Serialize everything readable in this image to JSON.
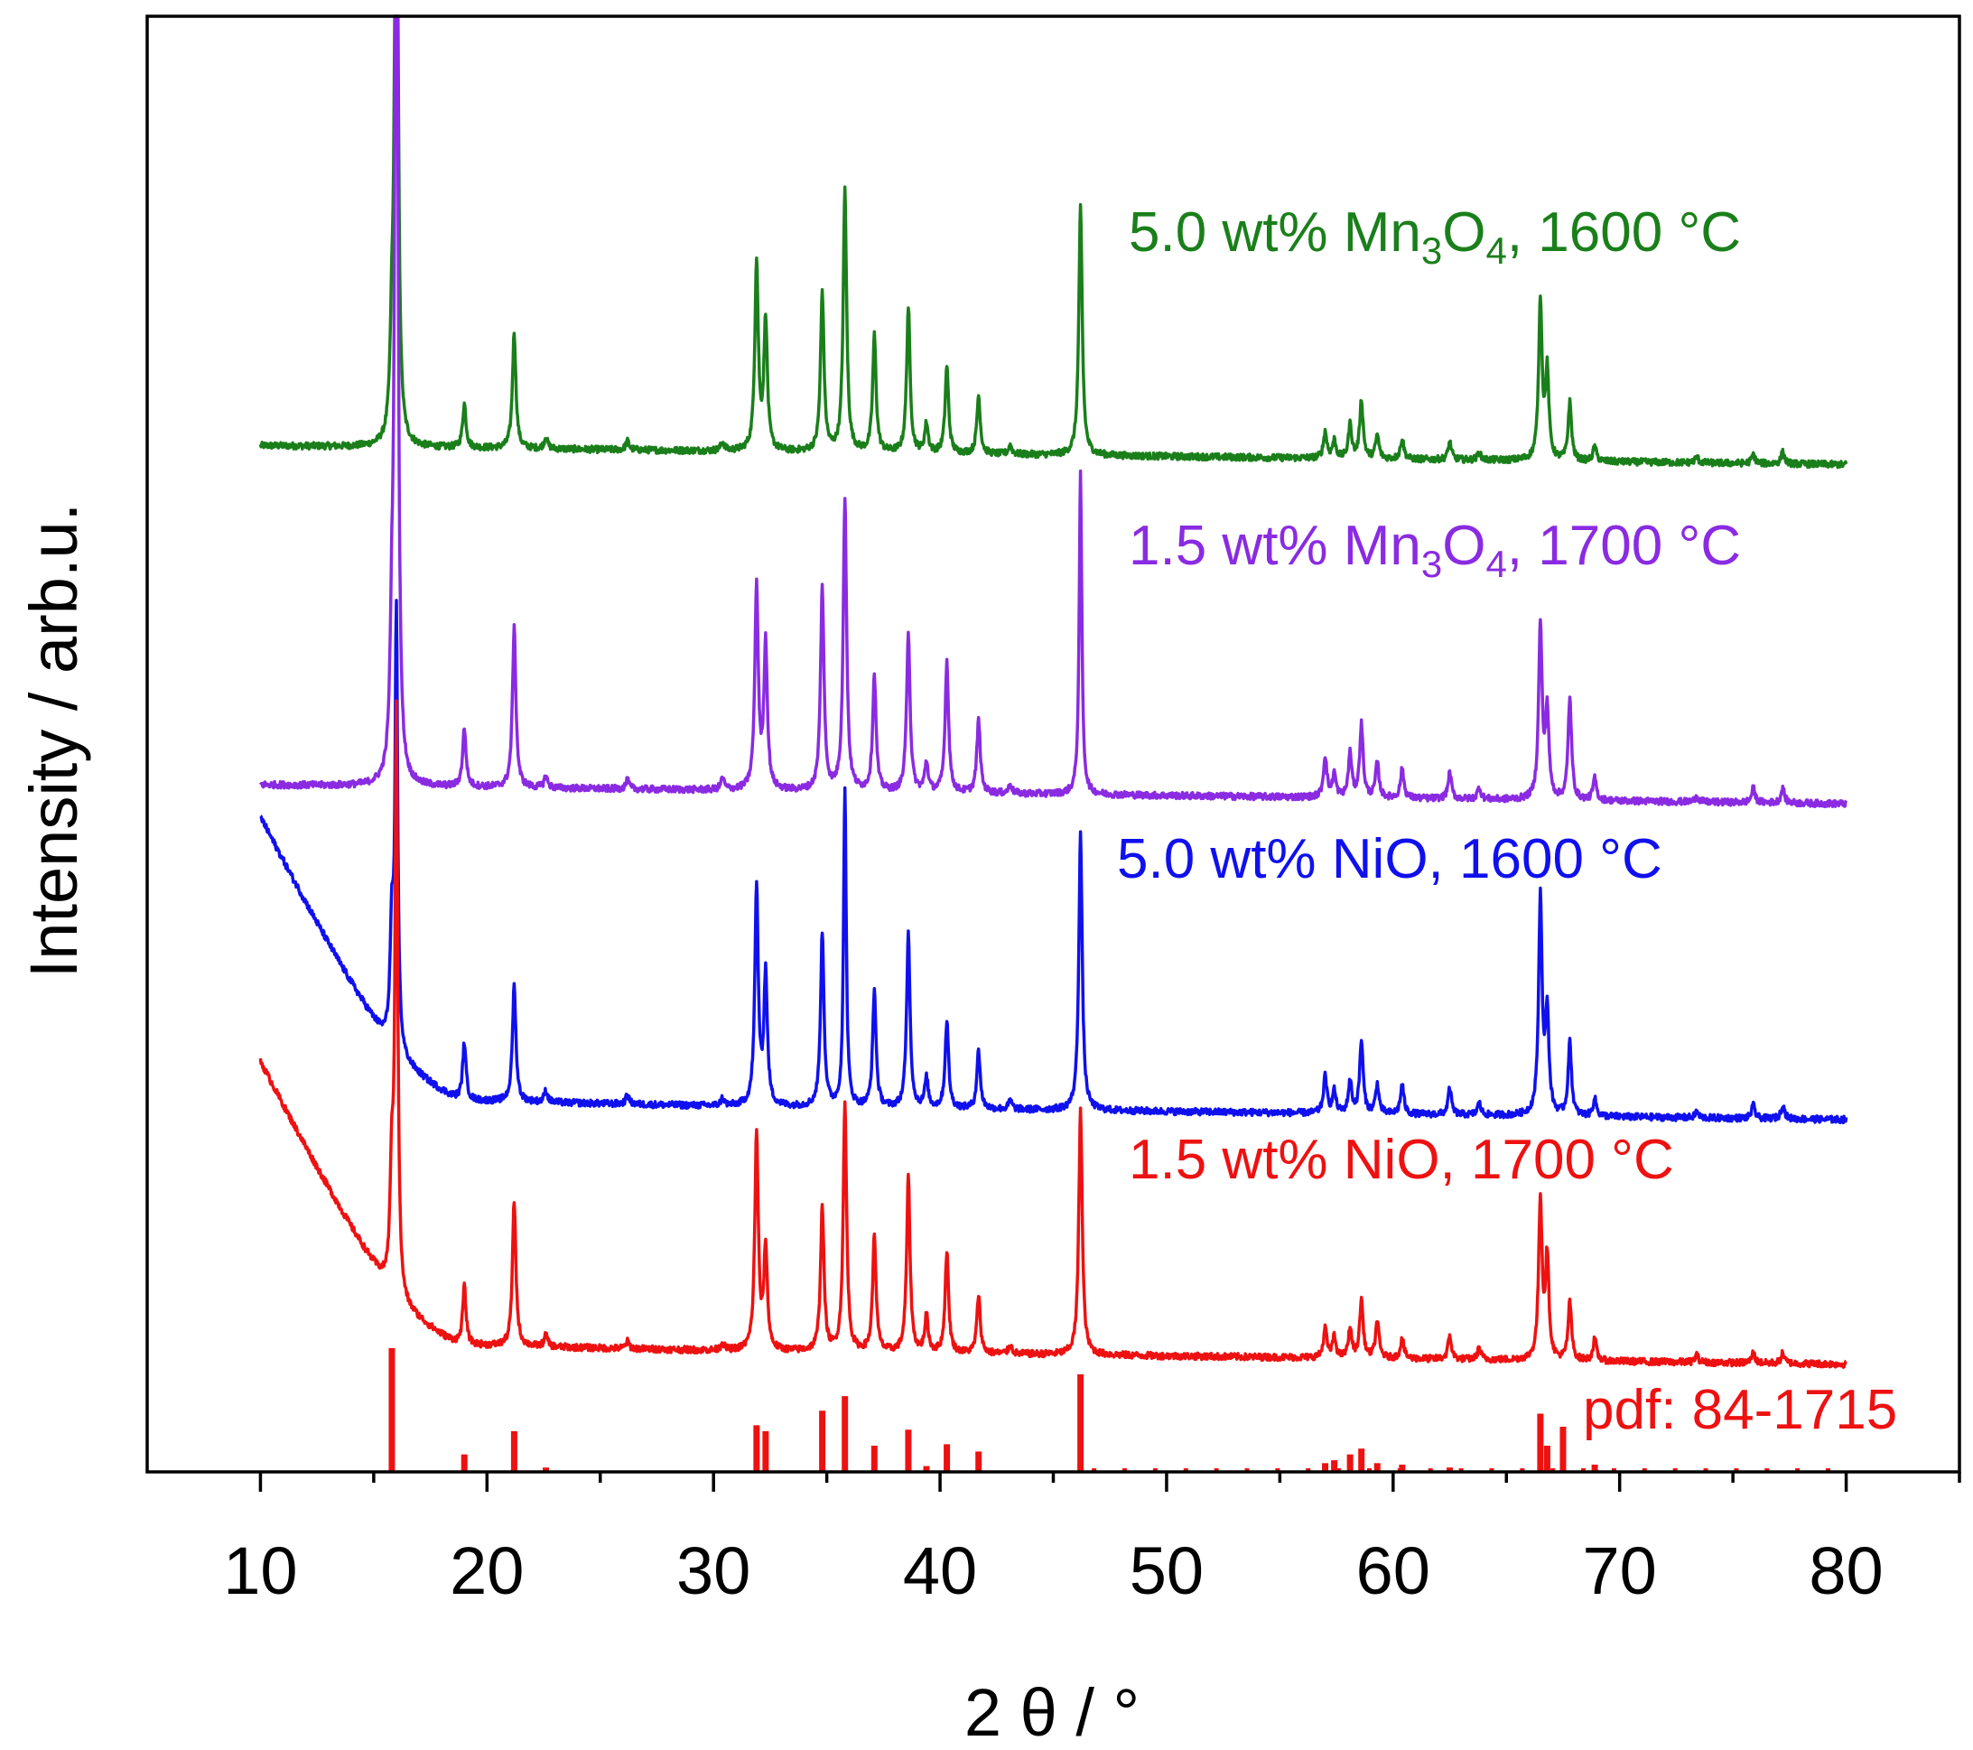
{
  "chart_data": {
    "type": "line",
    "title": "",
    "xlabel": "2 θ / °",
    "ylabel": "Intensity / arb.u.",
    "xlim": [
      5,
      85
    ],
    "ylim": [
      0,
      100
    ],
    "xticks": [
      "10",
      "20",
      "30",
      "40",
      "50",
      "60",
      "70",
      "80"
    ],
    "grid": false,
    "legend": "inline labels right of traces",
    "series": [
      {
        "name": "5.0 wt% Mn3O4, 1600 °C",
        "label_parts": [
          "5.0 wt% Mn",
          "3",
          "O",
          "4",
          ", 1600 °C"
        ],
        "color": "#1a7f1a",
        "baseline": 70.5,
        "tilt": -1.3,
        "background": "flat",
        "points": [
          [
            15.8,
            6
          ],
          [
            16.0,
            66
          ],
          [
            19.0,
            3
          ],
          [
            21.2,
            8
          ],
          [
            22.6,
            0.8
          ],
          [
            26.2,
            0.6
          ],
          [
            30.4,
            0.6
          ],
          [
            31.9,
            13
          ],
          [
            32.3,
            9
          ],
          [
            34.8,
            11
          ],
          [
            35.8,
            18
          ],
          [
            37.1,
            8
          ],
          [
            38.6,
            10
          ],
          [
            39.4,
            2
          ],
          [
            40.3,
            6
          ],
          [
            41.7,
            4
          ],
          [
            43.1,
            0.6
          ],
          [
            46.2,
            17
          ],
          [
            57.0,
            1.8
          ],
          [
            57.4,
            1.2
          ],
          [
            58.1,
            2.3
          ],
          [
            58.6,
            4
          ],
          [
            59.3,
            1.6
          ],
          [
            60.4,
            1.4
          ],
          [
            62.5,
            1.2
          ],
          [
            63.8,
            0.5
          ],
          [
            66.5,
            11
          ],
          [
            66.8,
            6
          ],
          [
            67.8,
            4
          ],
          [
            68.9,
            1
          ],
          [
            73.4,
            0.4
          ],
          [
            75.9,
            0.6
          ],
          [
            77.2,
            0.8
          ]
        ]
      },
      {
        "name": "1.5 wt% Mn3O4, 1700 °C",
        "label_parts": [
          "1.5 wt% Mn",
          "3",
          "O",
          "4",
          ", 1700 °C"
        ],
        "color": "#8a2be2",
        "baseline": 47.2,
        "tilt": -1.3,
        "background": "flat",
        "points": [
          [
            15.8,
            8
          ],
          [
            16.0,
            88
          ],
          [
            19.0,
            4
          ],
          [
            21.2,
            11
          ],
          [
            22.6,
            0.8
          ],
          [
            26.2,
            0.6
          ],
          [
            30.4,
            0.8
          ],
          [
            31.9,
            14
          ],
          [
            32.3,
            10
          ],
          [
            34.8,
            14
          ],
          [
            35.8,
            20
          ],
          [
            37.1,
            8
          ],
          [
            38.6,
            11
          ],
          [
            39.4,
            2
          ],
          [
            40.3,
            9
          ],
          [
            41.7,
            5
          ],
          [
            43.1,
            0.6
          ],
          [
            46.2,
            22
          ],
          [
            57.0,
            2.8
          ],
          [
            57.4,
            1.6
          ],
          [
            58.1,
            3
          ],
          [
            58.6,
            5
          ],
          [
            59.3,
            2.4
          ],
          [
            60.4,
            2
          ],
          [
            62.5,
            1.8
          ],
          [
            63.8,
            0.8
          ],
          [
            66.5,
            12
          ],
          [
            66.8,
            6
          ],
          [
            67.8,
            7
          ],
          [
            68.9,
            1.5
          ],
          [
            73.4,
            0.4
          ],
          [
            75.9,
            1
          ],
          [
            77.2,
            1
          ]
        ]
      },
      {
        "name": "5.0 wt% NiO, 1600 °C",
        "label_parts": [
          "5.0 wt% NiO, 1600 °C",
          "",
          "",
          "",
          ""
        ],
        "color": "#1010ee",
        "baseline": 25.5,
        "tilt": -1.3,
        "background": "rising",
        "points": [
          [
            15.8,
            8
          ],
          [
            16.0,
            30
          ],
          [
            19.0,
            4
          ],
          [
            21.2,
            8
          ],
          [
            22.6,
            0.8
          ],
          [
            26.2,
            0.6
          ],
          [
            30.4,
            0.5
          ],
          [
            31.9,
            15
          ],
          [
            32.3,
            9
          ],
          [
            34.8,
            12
          ],
          [
            35.8,
            22
          ],
          [
            37.1,
            8
          ],
          [
            38.6,
            12
          ],
          [
            39.4,
            2
          ],
          [
            40.3,
            6
          ],
          [
            41.7,
            4
          ],
          [
            43.1,
            0.6
          ],
          [
            46.2,
            19
          ],
          [
            57.0,
            2.5
          ],
          [
            57.4,
            1.5
          ],
          [
            58.1,
            2.2
          ],
          [
            58.6,
            5
          ],
          [
            59.3,
            2
          ],
          [
            60.4,
            2
          ],
          [
            62.5,
            1.8
          ],
          [
            63.8,
            0.8
          ],
          [
            66.5,
            15
          ],
          [
            66.8,
            7
          ],
          [
            67.8,
            5
          ],
          [
            68.9,
            1.2
          ],
          [
            73.4,
            0.4
          ],
          [
            75.9,
            0.9
          ],
          [
            77.2,
            1
          ]
        ]
      },
      {
        "name": "1.5 wt% NiO, 1700 °C",
        "label_parts": [
          "1.5 wt% NiO, 1700 °C",
          "",
          "",
          "",
          ""
        ],
        "color": "#ee1111",
        "baseline": 8.7,
        "tilt": -1.3,
        "background": "rising",
        "points": [
          [
            15.8,
            8
          ],
          [
            16.0,
            40
          ],
          [
            19.0,
            4
          ],
          [
            21.2,
            10
          ],
          [
            22.6,
            0.8
          ],
          [
            26.2,
            0.5
          ],
          [
            30.4,
            0.5
          ],
          [
            31.9,
            15
          ],
          [
            32.3,
            7
          ],
          [
            34.8,
            10
          ],
          [
            35.8,
            17
          ],
          [
            37.1,
            8
          ],
          [
            38.6,
            12
          ],
          [
            39.4,
            2.5
          ],
          [
            40.3,
            7
          ],
          [
            41.7,
            4
          ],
          [
            43.1,
            0.6
          ],
          [
            46.2,
            17
          ],
          [
            57.0,
            2
          ],
          [
            57.4,
            1.4
          ],
          [
            58.1,
            2
          ],
          [
            58.6,
            4
          ],
          [
            59.3,
            2.6
          ],
          [
            60.4,
            1.4
          ],
          [
            62.5,
            1.6
          ],
          [
            63.8,
            0.8
          ],
          [
            66.5,
            11
          ],
          [
            66.8,
            7
          ],
          [
            67.8,
            4
          ],
          [
            68.9,
            1.5
          ],
          [
            73.4,
            0.5
          ],
          [
            75.9,
            0.7
          ],
          [
            77.2,
            0.7
          ]
        ]
      }
    ],
    "reference": {
      "name": "pdf: 84-1715",
      "color": "#ee1111",
      "sticks": [
        [
          15.8,
          8.5
        ],
        [
          19.0,
          1.2
        ],
        [
          21.2,
          2.8
        ],
        [
          22.6,
          0.3
        ],
        [
          31.9,
          3.2
        ],
        [
          32.3,
          2.8
        ],
        [
          34.8,
          4.2
        ],
        [
          35.8,
          5.2
        ],
        [
          37.1,
          1.8
        ],
        [
          38.6,
          2.9
        ],
        [
          39.4,
          0.4
        ],
        [
          40.3,
          1.9
        ],
        [
          41.7,
          1.4
        ],
        [
          46.2,
          6.7
        ],
        [
          57.0,
          0.6
        ],
        [
          57.4,
          0.8
        ],
        [
          58.1,
          1.2
        ],
        [
          58.6,
          1.6
        ],
        [
          59.3,
          0.6
        ],
        [
          60.4,
          0.5
        ],
        [
          62.5,
          0.3
        ],
        [
          66.5,
          4
        ],
        [
          66.8,
          1.8
        ],
        [
          67.5,
          3.1
        ],
        [
          68.9,
          0.5
        ]
      ]
    }
  }
}
